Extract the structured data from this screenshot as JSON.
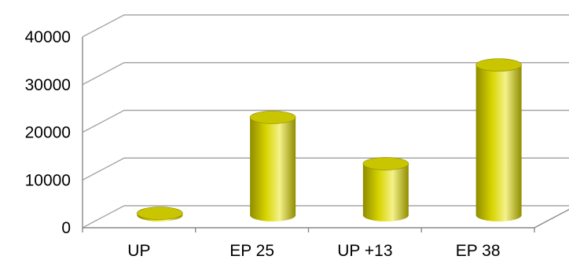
{
  "chart_data": {
    "type": "bar",
    "style": "3d-cylinder",
    "categories": [
      "UP",
      "EP 25",
      "UP +13",
      "EP 38"
    ],
    "values": [
      400,
      20500,
      10800,
      31500
    ],
    "title": "",
    "xlabel": "",
    "ylabel": "",
    "ylim": [
      0,
      40000
    ],
    "yticks": [
      0,
      10000,
      20000,
      30000,
      40000
    ],
    "ytick_labels": [
      "0",
      "10000",
      "20000",
      "30000",
      "40000"
    ],
    "grid": true,
    "legend": "none",
    "colors": {
      "bar": "#d8d400",
      "bar_light": "#f4f28a",
      "bar_dark": "#8f8c00",
      "bar_top": "#c9c500",
      "grid": "#a6a6a6",
      "axis": "#888888",
      "text": "#000000"
    }
  }
}
